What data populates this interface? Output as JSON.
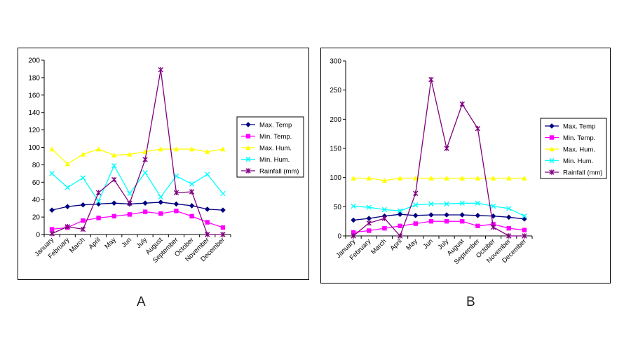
{
  "chart_data": [
    {
      "type": "line",
      "panel_label": "A",
      "categories": [
        "January",
        "February",
        "March",
        "April",
        "May",
        "Jun",
        "July",
        "August",
        "September",
        "October",
        "November",
        "December"
      ],
      "ylim": [
        0,
        200
      ],
      "yticks": [
        0,
        20,
        40,
        60,
        80,
        100,
        120,
        140,
        160,
        180,
        200
      ],
      "legend_position": "right",
      "grid": false,
      "series": [
        {
          "name": "Max. Temp",
          "color": "#000080",
          "marker": "diamond",
          "values": [
            28,
            32,
            34,
            35,
            36,
            35,
            36,
            37,
            35,
            33,
            29,
            28
          ]
        },
        {
          "name": "Min. Temp.",
          "color": "#ff00ff",
          "marker": "square",
          "values": [
            6,
            8,
            16,
            19,
            21,
            23,
            26,
            24,
            27,
            21,
            14,
            8
          ]
        },
        {
          "name": "Max. Hum.",
          "color": "#ffff00",
          "marker": "triangle",
          "values": [
            98,
            81,
            92,
            98,
            91,
            92,
            95,
            98,
            98,
            98,
            95,
            98
          ]
        },
        {
          "name": "Min. Hum.",
          "color": "#00ffff",
          "marker": "x",
          "values": [
            70,
            54,
            65,
            38,
            79,
            47,
            71,
            43,
            67,
            58,
            69,
            47
          ]
        },
        {
          "name": "Rainfall (mm)",
          "color": "#800080",
          "marker": "star",
          "values": [
            1,
            9,
            6,
            48,
            63,
            36,
            86,
            189,
            48,
            49,
            0,
            0
          ]
        }
      ]
    },
    {
      "type": "line",
      "panel_label": "B",
      "categories": [
        "January",
        "February",
        "March",
        "April",
        "May",
        "Jun",
        "July",
        "August",
        "September",
        "October",
        "November",
        "December"
      ],
      "ylim": [
        0,
        300
      ],
      "yticks": [
        0,
        50,
        100,
        150,
        200,
        250,
        300
      ],
      "legend_position": "right",
      "grid": false,
      "series": [
        {
          "name": "Max. Temp",
          "color": "#000080",
          "marker": "diamond",
          "values": [
            27,
            30,
            34,
            37,
            35,
            36,
            36,
            36,
            35,
            34,
            32,
            29
          ]
        },
        {
          "name": "Min. Temp.",
          "color": "#ff00ff",
          "marker": "square",
          "values": [
            6,
            9,
            13,
            17,
            21,
            25,
            25,
            25,
            17,
            20,
            13,
            10
          ]
        },
        {
          "name": "Max. Hum.",
          "color": "#ffff00",
          "marker": "triangle",
          "values": [
            99,
            99,
            95,
            99,
            99,
            99,
            99,
            99,
            99,
            99,
            99,
            99
          ]
        },
        {
          "name": "Min. Hum.",
          "color": "#00ffff",
          "marker": "x",
          "values": [
            51,
            49,
            45,
            43,
            53,
            55,
            55,
            56,
            56,
            51,
            47,
            34
          ]
        },
        {
          "name": "Rainfall (mm)",
          "color": "#800080",
          "marker": "star",
          "values": [
            0,
            22,
            30,
            0,
            73,
            268,
            150,
            226,
            184,
            15,
            0,
            0
          ]
        }
      ]
    }
  ]
}
